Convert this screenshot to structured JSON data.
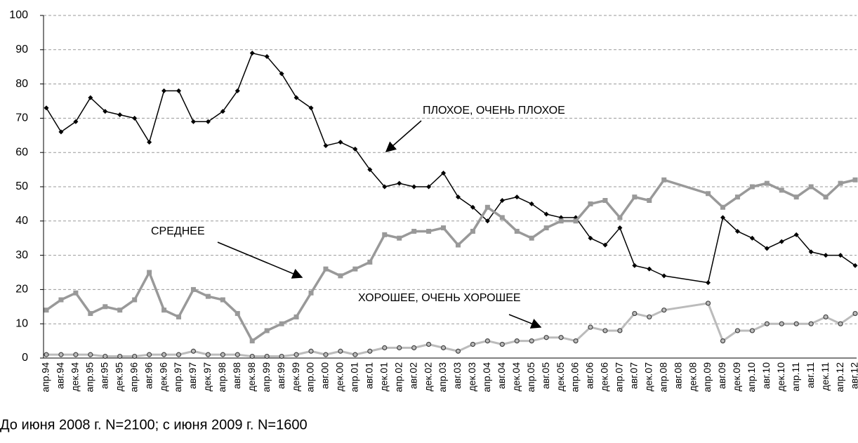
{
  "chart_data": {
    "type": "line",
    "categories": [
      "апр.94",
      "авг.94",
      "дек.94",
      "апр.95",
      "авг.95",
      "дек.95",
      "апр.96",
      "авг.96",
      "дек.96",
      "апр.97",
      "авг.97",
      "дек.97",
      "апр.98",
      "авг.98",
      "дек.98",
      "апр.99",
      "авг.99",
      "дек.99",
      "апр.00",
      "авг.00",
      "дек.00",
      "апр.01",
      "авг.01",
      "дек.01",
      "апр.02",
      "авг.02",
      "дек.02",
      "апр.03",
      "авг.03",
      "дек.03",
      "апр.04",
      "авг.04",
      "дек.04",
      "апр.05",
      "авг.05",
      "дек.05",
      "апр.06",
      "авг.06",
      "дек.06",
      "апр.07",
      "авг.07",
      "дек.07",
      "апр.08",
      "авг.08",
      "дек.08",
      "апр.09",
      "авг.09",
      "дек.09",
      "апр.10",
      "авг.10",
      "дек.10",
      "апр.11",
      "авг.11",
      "дек.11",
      "апр.12",
      "авг.12"
    ],
    "series": [
      {
        "color": "#000000",
        "marker": "diamond",
        "values": [
          73,
          66,
          69,
          76,
          72,
          71,
          70,
          63,
          78,
          78,
          69,
          69,
          72,
          78,
          89,
          88,
          83,
          76,
          73,
          62,
          63,
          61,
          55,
          50,
          51,
          50,
          50,
          54,
          47,
          44,
          40,
          46,
          47,
          45,
          42,
          41,
          41,
          35,
          33,
          38,
          27,
          26,
          24,
          null,
          null,
          22,
          41,
          37,
          35,
          32,
          34,
          36,
          31,
          30,
          30,
          27
        ]
      },
      {
        "color": "#999999",
        "marker": "square",
        "values": [
          14,
          17,
          19,
          13,
          15,
          14,
          17,
          25,
          14,
          12,
          20,
          18,
          17,
          13,
          5,
          8,
          10,
          12,
          19,
          26,
          24,
          26,
          28,
          36,
          35,
          37,
          37,
          38,
          33,
          37,
          44,
          41,
          37,
          35,
          38,
          40,
          40,
          45,
          46,
          41,
          47,
          46,
          52,
          null,
          null,
          48,
          44,
          47,
          50,
          51,
          49,
          47,
          50,
          47,
          51,
          52
        ]
      },
      {
        "color": "#bbbbbb",
        "marker": "circle",
        "values": [
          1,
          1,
          1,
          1,
          0.5,
          0.5,
          0.5,
          1,
          1,
          1,
          2,
          1,
          1,
          1,
          0.5,
          0.5,
          0.5,
          1,
          2,
          1,
          2,
          1,
          2,
          3,
          3,
          3,
          4,
          3,
          2,
          4,
          5,
          4,
          5,
          5,
          6,
          6,
          5,
          9,
          8,
          8,
          13,
          12,
          14,
          null,
          null,
          16,
          5,
          8,
          8,
          10,
          10,
          10,
          10,
          12,
          10,
          13
        ]
      }
    ],
    "span_gaps": true,
    "annotations": [
      "ПЛОХОЕ, ОЧЕНЬ ПЛОХОЕ",
      "СРЕДНЕЕ",
      "ХОРОШЕЕ, ОЧЕНЬ ХОРОШЕЕ"
    ],
    "note": "До июня 2008 г. N=2100; с июня 2009 г.  N=1600",
    "ylim": [
      0,
      100
    ],
    "yticks": [
      0,
      10,
      20,
      30,
      40,
      50,
      60,
      70,
      80,
      90,
      100
    ],
    "grid": true
  }
}
